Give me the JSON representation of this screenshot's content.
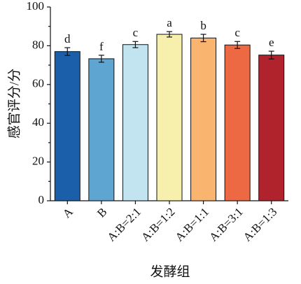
{
  "chart_data": {
    "type": "bar",
    "categories": [
      "A",
      "B",
      "A:B=2:1",
      "A:B=1:2",
      "A:B=1:1",
      "A:B=3:1",
      "A:B=1:3"
    ],
    "values": [
      77,
      73.3,
      80.6,
      85.9,
      84,
      80.4,
      75.2
    ],
    "errors": [
      2,
      1.8,
      1.6,
      1.4,
      1.9,
      1.8,
      2
    ],
    "letters": [
      "d",
      "f",
      "c",
      "a",
      "b",
      "c",
      "e"
    ],
    "colors": [
      "#1b5ea9",
      "#5ea5d2",
      "#c2e4f0",
      "#f7efac",
      "#f9b46f",
      "#ec6944",
      "#b0222c"
    ],
    "ylim": [
      0,
      100
    ],
    "yticks": [
      0,
      20,
      40,
      60,
      80,
      100
    ],
    "minor_yticks": [
      10,
      30,
      50,
      70,
      90
    ],
    "ylabel": "感官评分/分",
    "xlabel": "发酵组"
  }
}
